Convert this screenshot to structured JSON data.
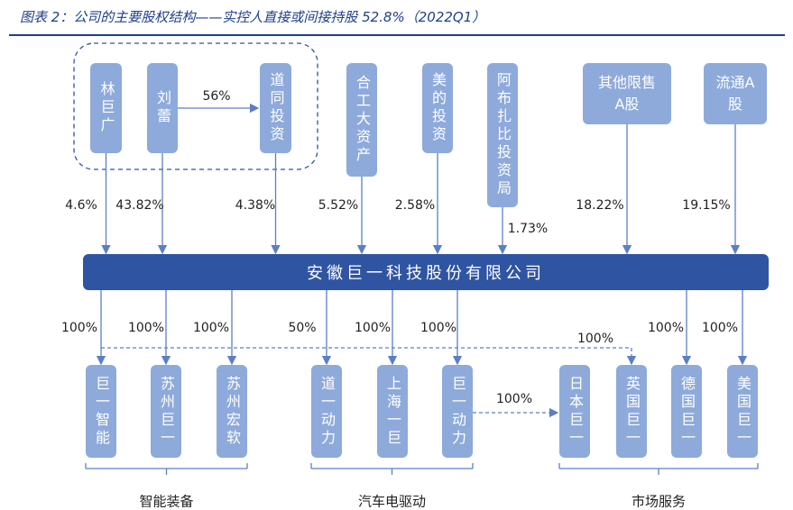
{
  "header": {
    "title": "图表 2：公司的主要股权结构——实控人直接或间接持股 52.8%（2022Q1）"
  },
  "shareholders": [
    {
      "label": "林巨广",
      "share": "4.6%"
    },
    {
      "label": "刘蕾",
      "share": "43.82%"
    },
    {
      "label": "道同投资",
      "share": "4.38%"
    },
    {
      "label": "合工大资产",
      "share": "5.52%"
    },
    {
      "label": "美的投资",
      "share": "2.58%"
    },
    {
      "label": "阿布扎比投资局",
      "share": "1.73%"
    },
    {
      "label": "其他限售A股",
      "share": "18.22%"
    },
    {
      "label": "流通A股",
      "share": "19.15%"
    }
  ],
  "internal_link": {
    "label": "56%"
  },
  "company": {
    "label": "安徽巨一科技股份有限公司"
  },
  "subsidiaries": [
    {
      "label": "巨一智能",
      "share": "100%"
    },
    {
      "label": "苏州巨一",
      "share": "100%"
    },
    {
      "label": "苏州宏软",
      "share": "100%"
    },
    {
      "label": "道一动力",
      "share": "50%"
    },
    {
      "label": "上海一巨",
      "share": "100%"
    },
    {
      "label": "巨一动力",
      "share": "100%"
    },
    {
      "label": "日本巨一"
    },
    {
      "label": "英国巨一"
    },
    {
      "label": "德国巨一",
      "share": "100%"
    },
    {
      "label": "美国巨一",
      "share": "100%"
    }
  ],
  "indirect_links": [
    {
      "label": "100%"
    },
    {
      "label": "100%"
    }
  ],
  "segments": [
    {
      "label": "智能装备"
    },
    {
      "label": "汽车电驱动"
    },
    {
      "label": "市场服务"
    }
  ]
}
